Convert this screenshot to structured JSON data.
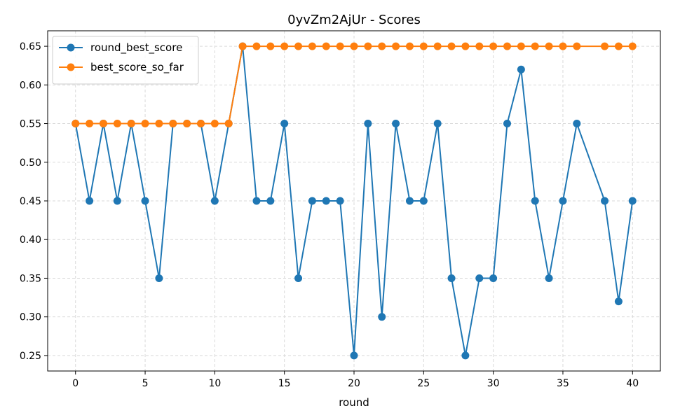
{
  "chart_data": {
    "type": "line",
    "title": "0yvZm2AjUr - Scores",
    "xlabel": "round",
    "ylabel": "",
    "xlim": [
      -2,
      42
    ],
    "ylim": [
      0.23,
      0.67
    ],
    "xticks": [
      0,
      5,
      10,
      15,
      20,
      25,
      30,
      35,
      40
    ],
    "yticks": [
      0.25,
      0.3,
      0.35,
      0.4,
      0.45,
      0.5,
      0.55,
      0.6,
      0.65
    ],
    "grid": true,
    "legend_position": "top-left",
    "series": [
      {
        "name": "round_best_score",
        "color": "#1f77b4",
        "marker": "circle",
        "x": [
          0,
          1,
          2,
          3,
          4,
          5,
          6,
          7,
          8,
          9,
          10,
          11,
          12,
          13,
          14,
          15,
          16,
          17,
          18,
          19,
          20,
          21,
          22,
          23,
          24,
          25,
          26,
          27,
          28,
          29,
          30,
          31,
          32,
          33,
          34,
          35,
          36,
          38,
          39,
          40
        ],
        "y": [
          0.55,
          0.45,
          0.55,
          0.45,
          0.55,
          0.45,
          0.35,
          0.55,
          0.55,
          0.55,
          0.45,
          0.55,
          0.65,
          0.45,
          0.45,
          0.55,
          0.35,
          0.45,
          0.45,
          0.45,
          0.25,
          0.55,
          0.3,
          0.55,
          0.45,
          0.45,
          0.55,
          0.35,
          0.25,
          0.35,
          0.35,
          0.55,
          0.62,
          0.45,
          0.35,
          0.45,
          0.55,
          0.45,
          0.32,
          0.45
        ]
      },
      {
        "name": "best_score_so_far",
        "color": "#ff7f0e",
        "marker": "circle",
        "x": [
          0,
          1,
          2,
          3,
          4,
          5,
          6,
          7,
          8,
          9,
          10,
          11,
          12,
          13,
          14,
          15,
          16,
          17,
          18,
          19,
          20,
          21,
          22,
          23,
          24,
          25,
          26,
          27,
          28,
          29,
          30,
          31,
          32,
          33,
          34,
          35,
          36,
          38,
          39,
          40
        ],
        "y": [
          0.55,
          0.55,
          0.55,
          0.55,
          0.55,
          0.55,
          0.55,
          0.55,
          0.55,
          0.55,
          0.55,
          0.55,
          0.65,
          0.65,
          0.65,
          0.65,
          0.65,
          0.65,
          0.65,
          0.65,
          0.65,
          0.65,
          0.65,
          0.65,
          0.65,
          0.65,
          0.65,
          0.65,
          0.65,
          0.65,
          0.65,
          0.65,
          0.65,
          0.65,
          0.65,
          0.65,
          0.65,
          0.65,
          0.65,
          0.65
        ]
      }
    ]
  }
}
